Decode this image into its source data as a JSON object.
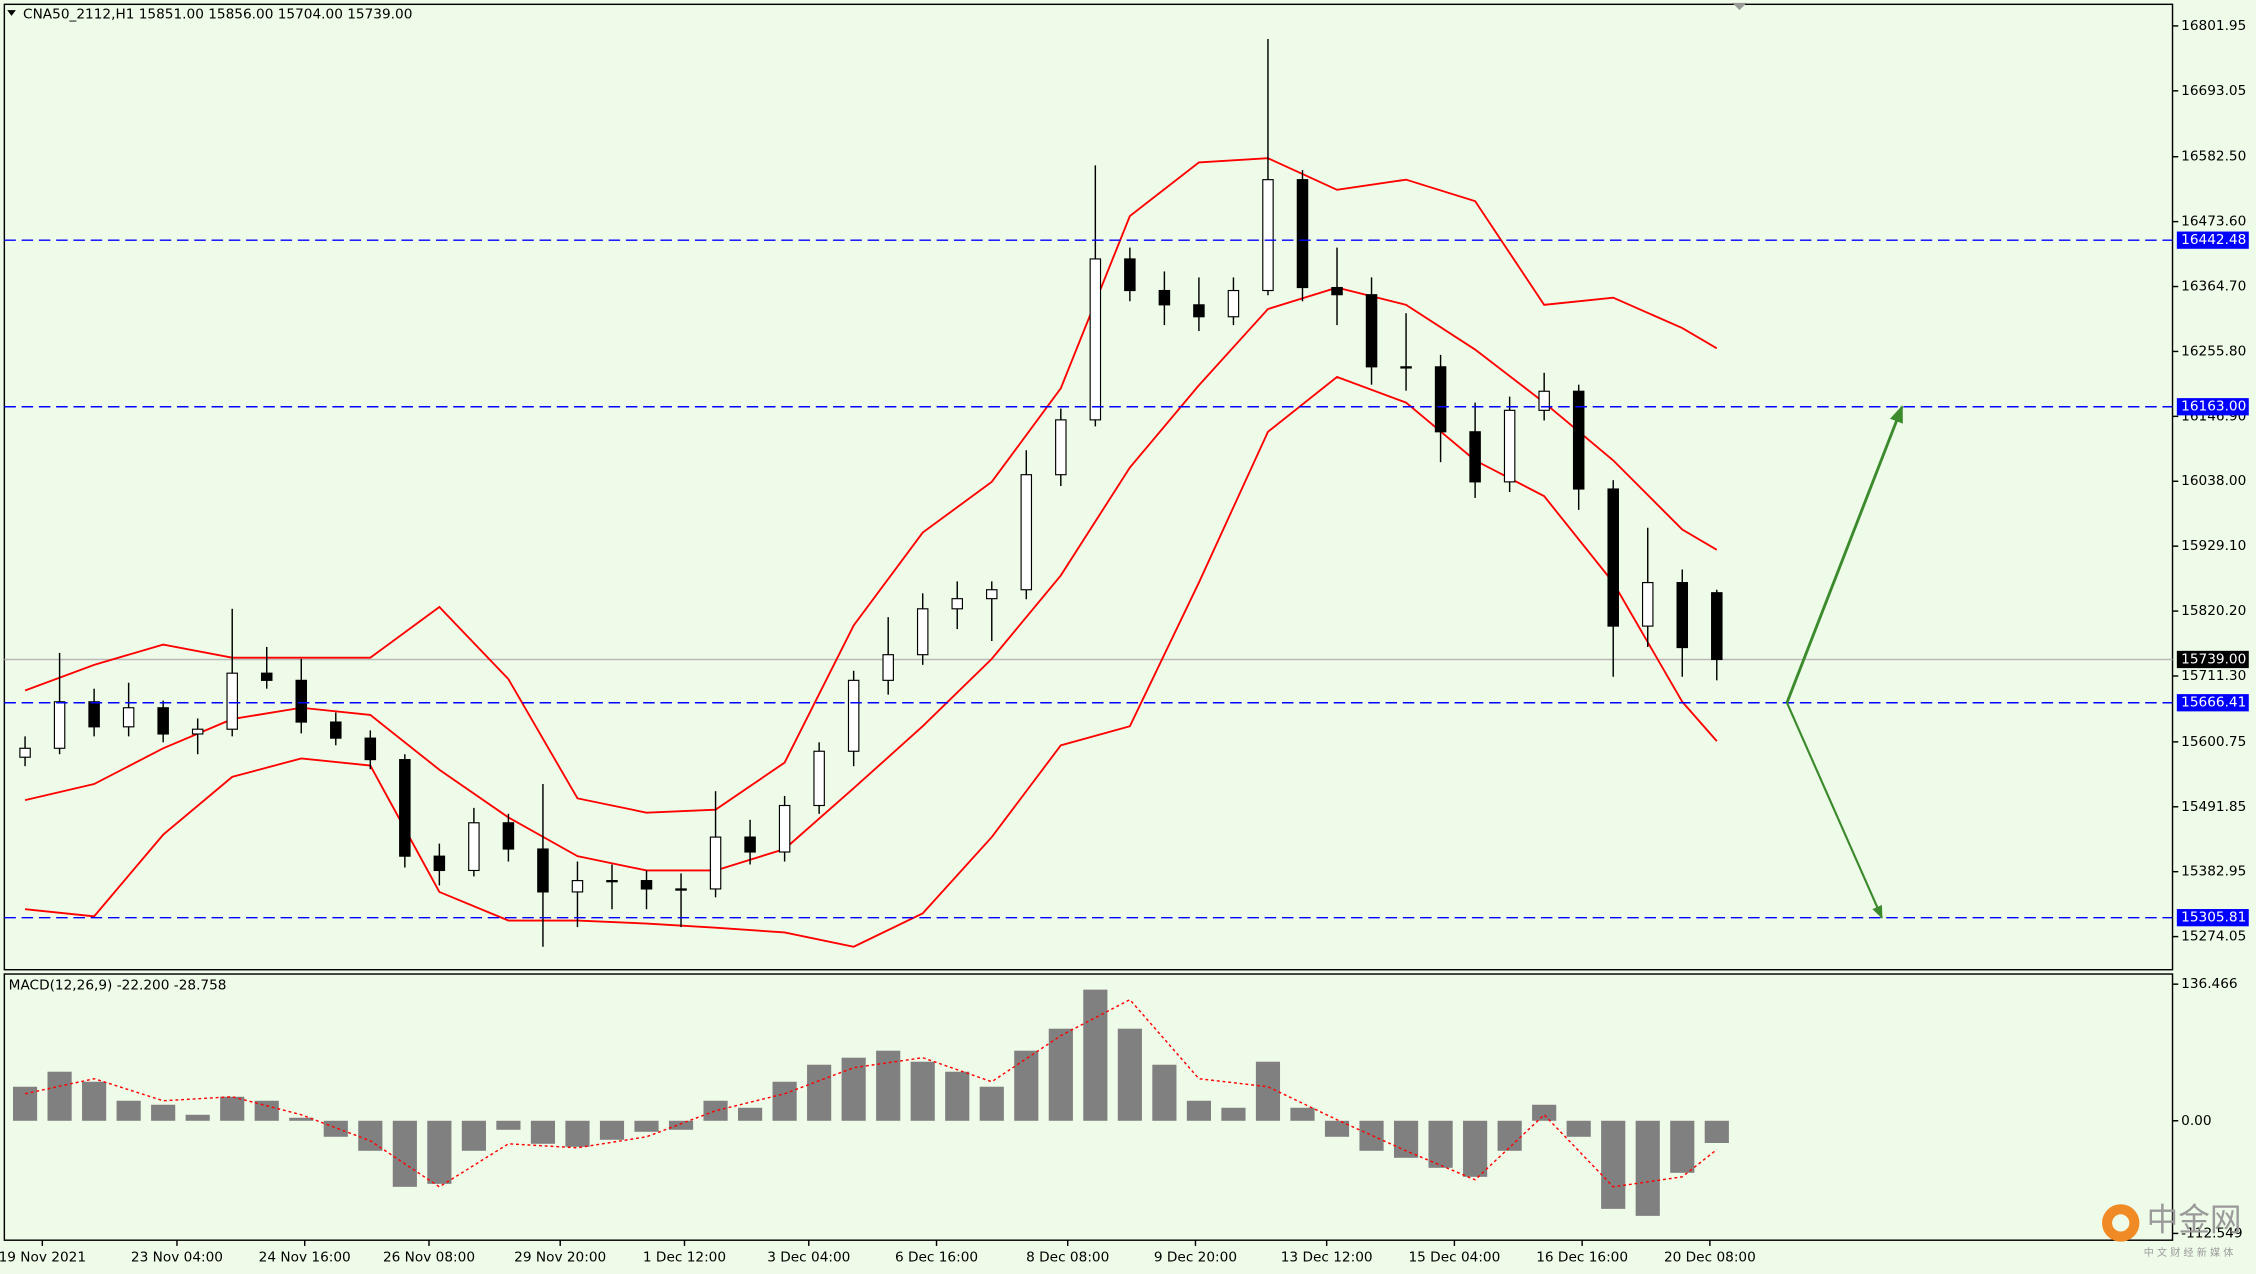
{
  "chart_data": [
    {
      "type": "candlestick",
      "title": "CNA50_2112,H1  15851.00 15856.00 15704.00 15739.00",
      "xlim": [
        -0.6,
        62.2
      ],
      "ylim": [
        15218.5,
        16838.2
      ],
      "xticks": [
        {
          "value": 0.5,
          "label": "19 Nov 2021"
        },
        {
          "value": 4.4,
          "label": "23 Nov 04:00"
        },
        {
          "value": 8.1,
          "label": "24 Nov 16:00"
        },
        {
          "value": 11.7,
          "label": "26 Nov 08:00"
        },
        {
          "value": 15.5,
          "label": "29 Nov 20:00"
        },
        {
          "value": 19.1,
          "label": "1 Dec 12:00"
        },
        {
          "value": 22.7,
          "label": "3 Dec 04:00"
        },
        {
          "value": 26.4,
          "label": "6 Dec 16:00"
        },
        {
          "value": 30.2,
          "label": "8 Dec 08:00"
        },
        {
          "value": 33.9,
          "label": "9 Dec 20:00"
        },
        {
          "value": 37.7,
          "label": "13 Dec 12:00"
        },
        {
          "value": 41.4,
          "label": "15 Dec 04:00"
        },
        {
          "value": 45.1,
          "label": "16 Dec 16:00"
        },
        {
          "value": 48.8,
          "label": "20 Dec 08:00"
        }
      ],
      "yticks": [
        16801.95,
        16693.05,
        {
          "value": 16582.5,
          "label": "16582.50"
        },
        {
          "value": 16473.6,
          "label": "16473.60"
        },
        {
          "value": 16364.7,
          "label": "16364.70"
        },
        {
          "value": 16255.8,
          "label": "16255.80"
        },
        {
          "value": 16146.9,
          "label": "16146.90"
        },
        {
          "value": 16038,
          "label": "16038.00"
        },
        {
          "value": 15929.1,
          "label": "15929.10"
        },
        {
          "value": 15820.2,
          "label": "15820.20"
        },
        {
          "value": 15711.3,
          "label": "15711.30"
        },
        15600.75,
        15491.85,
        15382.95,
        15274.05
      ],
      "open": [
        15575,
        15590,
        15668,
        15626,
        15658,
        15614,
        15622,
        15716,
        15704,
        15634,
        15607,
        15571,
        15409,
        15385,
        15465,
        15421,
        15349,
        15368,
        15368,
        15354,
        15354,
        15441,
        15416,
        15494,
        15585,
        15704,
        15747,
        15824,
        15841,
        15856,
        16049,
        16141,
        16411,
        16358,
        16334,
        16314,
        16358,
        16544,
        16363,
        16351,
        16230,
        16230,
        16121,
        16037,
        16157,
        16189,
        16025,
        15795,
        15868,
        15851
      ],
      "high": [
        15610,
        15750,
        15690,
        15700,
        15670,
        15640,
        15824,
        15760,
        15740,
        15650,
        15620,
        15580,
        15430,
        15490,
        15480,
        15530,
        15400,
        15395,
        15385,
        15380,
        15518,
        15470,
        15510,
        15600,
        15720,
        15810,
        15850,
        15870,
        15870,
        16090,
        16160,
        16568,
        16430,
        16390,
        16380,
        16380,
        16780,
        16560,
        16430,
        16380,
        16320,
        16250,
        16170,
        16180,
        16220,
        16200,
        16040,
        15960,
        15890,
        15856
      ],
      "low": [
        15560,
        15580,
        15610,
        15610,
        15600,
        15580,
        15610,
        15690,
        15615,
        15595,
        15555,
        15390,
        15360,
        15375,
        15400,
        15257,
        15290,
        15320,
        15320,
        15290,
        15340,
        15395,
        15400,
        15480,
        15560,
        15680,
        15730,
        15790,
        15770,
        15840,
        16030,
        16130,
        16340,
        16300,
        16290,
        16300,
        16350,
        16340,
        16300,
        16200,
        16190,
        16070,
        16010,
        16020,
        16140,
        15990,
        15710,
        15760,
        15710,
        15704
      ],
      "close": [
        15590,
        15668,
        15626,
        15658,
        15614,
        15622,
        15716,
        15704,
        15634,
        15607,
        15571,
        15409,
        15385,
        15465,
        15421,
        15349,
        15368,
        15368,
        15354,
        15354,
        15441,
        15416,
        15494,
        15585,
        15704,
        15747,
        15824,
        15841,
        15856,
        16049,
        16141,
        16411,
        16358,
        16334,
        16314,
        16358,
        16544,
        16363,
        16351,
        16230,
        16230,
        16121,
        16037,
        16157,
        16189,
        16025,
        15795,
        15868,
        15759,
        15739
      ],
      "bands": {
        "color": "#ff0000",
        "x": [
          0,
          2,
          4,
          6,
          8,
          10,
          12,
          14,
          16,
          18,
          20,
          22,
          24,
          26,
          28,
          30,
          32,
          34,
          36,
          38,
          40,
          42,
          44,
          46,
          48,
          49
        ],
        "series": [
          {
            "values": [
              15687,
              15730,
              15764,
              15742,
              15742,
              15742,
              15827,
              15706,
              15506,
              15482,
              15487,
              15566,
              15796,
              15952,
              16037,
              16194,
              16483,
              16573,
              16580,
              16527,
              16544,
              16508,
              16334,
              16346,
              16295,
              16261
            ]
          },
          {
            "values": [
              15503,
              15530,
              15590,
              15639,
              15658,
              15646,
              15554,
              15474,
              15409,
              15385,
              15385,
              15421,
              15523,
              15627,
              15740,
              15880,
              16061,
              16199,
              16327,
              16363,
              16334,
              16259,
              16170,
              16073,
              15957,
              15923
            ]
          },
          {
            "values": [
              15320,
              15308,
              15445,
              15542,
              15573,
              15561,
              15349,
              15301,
              15301,
              15296,
              15289,
              15281,
              15257,
              15313,
              15441,
              15595,
              15627,
              15868,
              16121,
              16213,
              16170,
              16073,
              16013,
              15868,
              15668,
              15602
            ]
          }
        ]
      },
      "levels": {
        "color": "#0000ff",
        "values": [
          16442.48,
          {
            "value": 16163,
            "label": "16163.00"
          },
          15666.41,
          15305.81
        ]
      },
      "last_price": {
        "value": 15739,
        "label": "15739.00"
      }
    },
    {
      "type": "macd",
      "title": "MACD(12,26,9) -22.200 -28.758",
      "ylim": [
        -119.3,
        146.6
      ],
      "yticks": [
        136.466,
        {
          "value": 0,
          "label": "0.00"
        },
        -112.549
      ],
      "histogram": {
        "color": "#808080",
        "values": [
          34,
          49,
          39,
          20,
          16,
          6,
          24,
          20,
          3,
          -16,
          -30,
          -66,
          -63,
          -30,
          -9,
          -23,
          -26,
          -19,
          -11,
          -9,
          20,
          13,
          39,
          56,
          63,
          70,
          59,
          49,
          34,
          70,
          92,
          131,
          92,
          56,
          20,
          13,
          59,
          13,
          -16,
          -30,
          -37,
          -47,
          -56,
          -30,
          16,
          -16,
          -88,
          -95,
          -52,
          -22.2
        ]
      },
      "signal": {
        "color": "#ff0000",
        "x": [
          0,
          2,
          4,
          6,
          8,
          10,
          12,
          14,
          16,
          18,
          20,
          22,
          24,
          26,
          28,
          30,
          32,
          34,
          36,
          38,
          40,
          42,
          44,
          46,
          48,
          49
        ],
        "values": [
          27,
          42,
          20,
          24,
          6,
          -20,
          -66,
          -23,
          -27,
          -16,
          10,
          27,
          53,
          63,
          39,
          85,
          121,
          42,
          34,
          1,
          -30,
          -59,
          6,
          -66,
          -56,
          -28.758
        ]
      }
    }
  ],
  "watermark": {
    "name": "中金网",
    "tagline": "中 文 财 经 新 媒 体"
  }
}
